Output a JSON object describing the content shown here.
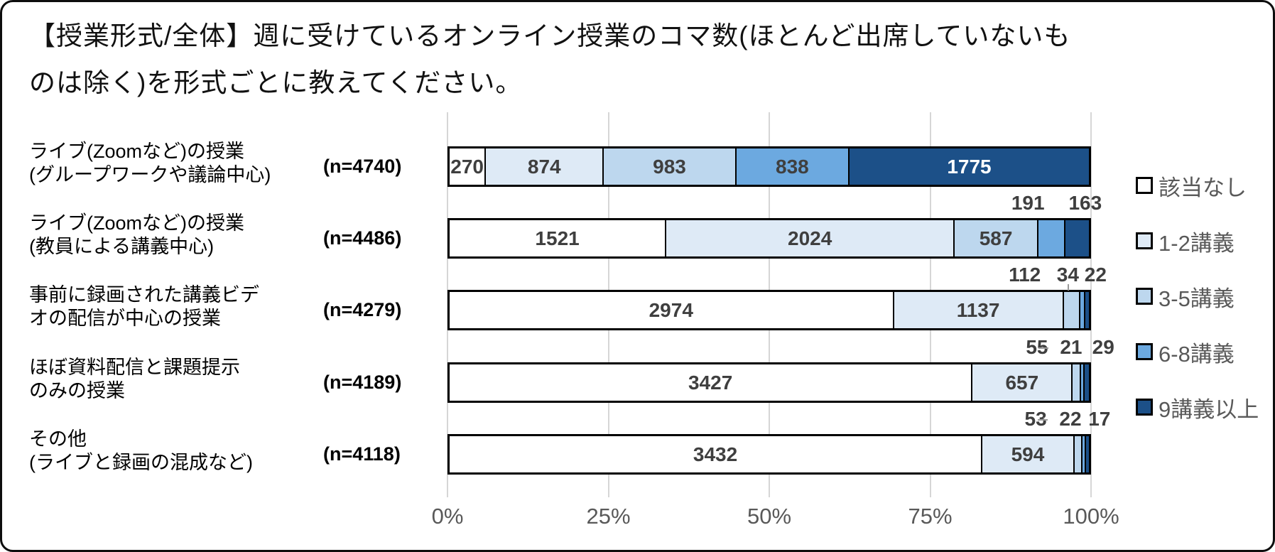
{
  "title_lines": {
    "line1": "【授業形式/全体】週に受けているオンライン授業のコマ数(ほとんど出席していないも",
    "line2": "のは除く)を形式ごとに教えてください。"
  },
  "chart_data": {
    "type": "bar",
    "subtype": "horizontal-100pct-stacked",
    "title": "【授業形式/全体】週に受けているオンライン授業のコマ数(ほとんど出席していないものは除く)を形式ごとに教えてください。",
    "legend_position": "right",
    "grid": true,
    "x_axis": {
      "ticks": [
        "0%",
        "25%",
        "50%",
        "75%",
        "100%"
      ],
      "range": [
        0,
        100
      ]
    },
    "series_legend": [
      {
        "label": "該当なし",
        "color": "#ffffff"
      },
      {
        "label": "1-2講義",
        "color": "#deeaf6"
      },
      {
        "label": "3-5講義",
        "color": "#bdd7ee"
      },
      {
        "label": "6-8講義",
        "color": "#6ca9e0"
      },
      {
        "label": "9講義以上",
        "color": "#1c5088"
      }
    ],
    "value_text_colors": [
      "#3f3f3f",
      "#3f3f3f",
      "#3f3f3f",
      "#3f3f3f",
      "#ffffff"
    ],
    "rows": [
      {
        "label_lines": [
          "ライブ(Zoomなど)の授業",
          "(グループワークや議論中心)"
        ],
        "n_label": "(n=4740)",
        "n": 4740,
        "values": [
          270,
          874,
          983,
          838,
          1775
        ],
        "inside_labels": 5,
        "callouts": []
      },
      {
        "label_lines": [
          "ライブ(Zoomなど)の授業",
          "(教員による講義中心)"
        ],
        "n_label": "(n=4486)",
        "n": 4486,
        "values": [
          1521,
          2024,
          587,
          191,
          163
        ],
        "inside_labels": 3,
        "callouts": [
          {
            "value": "191",
            "x_pct": 90.2
          },
          {
            "value": "163",
            "x_pct": 99.1
          }
        ]
      },
      {
        "label_lines": [
          "事前に録画された講義ビデ",
          "オの配信が中心の授業"
        ],
        "n_label": "(n=4279)",
        "n": 4279,
        "values": [
          2974,
          1137,
          112,
          34,
          22
        ],
        "inside_labels": 2,
        "callouts": [
          {
            "value": "112",
            "x_pct": 89.7
          },
          {
            "value": "34",
            "x_pct": 96.4,
            "leader": "v"
          },
          {
            "value": "22",
            "x_pct": 100.7
          }
        ]
      },
      {
        "label_lines": [
          "ほぼ資料配信と課題提示",
          "のみの授業"
        ],
        "n_label": "(n=4189)",
        "n": 4189,
        "values": [
          3427,
          657,
          55,
          21,
          29
        ],
        "inside_labels": 2,
        "callouts": [
          {
            "value": "55",
            "x_pct": 91.6
          },
          {
            "value": "21",
            "x_pct": 96.9,
            "leader": "h"
          },
          {
            "value": "29",
            "x_pct": 101.9
          }
        ]
      },
      {
        "label_lines": [
          "その他",
          "(ライブと録画の混成など)"
        ],
        "n_label": "(n=4118)",
        "n": 4118,
        "values": [
          3432,
          594,
          53,
          22,
          17
        ],
        "inside_labels": 2,
        "callouts": [
          {
            "value": "53",
            "x_pct": 91.4
          },
          {
            "value": "22",
            "x_pct": 96.8,
            "leader": "h"
          },
          {
            "value": "17",
            "x_pct": 101.3
          }
        ]
      }
    ]
  }
}
